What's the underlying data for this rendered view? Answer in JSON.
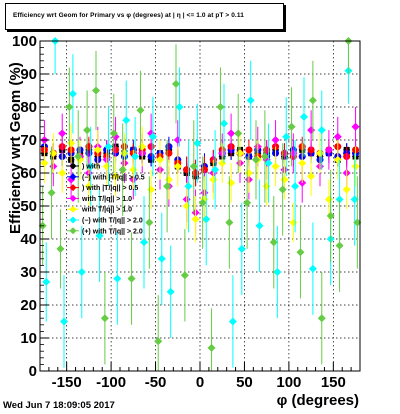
{
  "title": "Efficiency wrt Geom for Primary vs φ (degrees) at | η | <= 1.0 at pT > 0.11",
  "timestamp": "Wed Jun  7 18:09:05 2017",
  "colors": {
    "black": "#000000",
    "blue": "#0000ff",
    "red": "#ff0000",
    "magenta": "#ff00ff",
    "yellow": "#ffff00",
    "cyan": "#00ffff",
    "green": "#66cc44"
  },
  "chart_data": {
    "type": "scatter",
    "title": "Efficiency wrt Geom for Primary vs φ (degrees) at | η | <= 1.0 at pT > 0.11",
    "xlabel": "φ (degrees)",
    "ylabel": "Efficiency wrt Geom (%)",
    "xlim": [
      -180,
      180
    ],
    "ylim": [
      0,
      100
    ],
    "grid": true,
    "x_ticks": [
      -150,
      -100,
      -50,
      0,
      50,
      100,
      150
    ],
    "y_ticks": [
      0,
      10,
      20,
      30,
      40,
      50,
      60,
      70,
      80,
      90,
      100
    ],
    "legend": {
      "placement": "left",
      "entries": [
        {
          "label": "(+) with |ΔT/|q|| > 0.5",
          "color": "#000000",
          "visible_text": ") with"
        },
        {
          "label": "(−) with |ΔT/|q|| > 0.5",
          "color": "#0000ff",
          "visible_text": "(−) with |T/|q|| > 0.5"
        },
        {
          "label": "(+) with |ΔT/|q|| > 1.0",
          "color": "#ff0000",
          "visible_text": ") with |T/|q|| > 0.5"
        },
        {
          "label": "(−) with |ΔT/|q|| > 1.0",
          "color": "#ff00ff",
          "visible_text": "with T/|q|| > 1.0"
        },
        {
          "label": "(+) with |ΔT/|q|| > 2.0",
          "color": "#ffff00",
          "visible_text": "with T/|q|| > 1.0"
        },
        {
          "label": "(−) with |ΔT/|q|| > 2.0",
          "color": "#00ffff",
          "visible_text": "(−) with T/|q|| > 2.0"
        },
        {
          "label": "(+) with |ΔT/|q|| > 2.0",
          "color": "#66cc44",
          "visible_text": "(+) with T/|q|| > 2.0"
        }
      ]
    },
    "series": [
      {
        "color": "#000000",
        "marker": "square",
        "x": [
          -175,
          -165,
          -155,
          -145,
          -135,
          -125,
          -115,
          -105,
          -95,
          -85,
          -75,
          -65,
          -55,
          -45,
          -35,
          -25,
          -15,
          -5,
          5,
          15,
          25,
          35,
          45,
          55,
          65,
          75,
          85,
          95,
          105,
          115,
          125,
          135,
          145,
          155,
          165,
          175
        ],
        "y": [
          66,
          65,
          67,
          64,
          66,
          67,
          65,
          66,
          68,
          66,
          67,
          65,
          64,
          66,
          67,
          62,
          60,
          59,
          61,
          63,
          65,
          66,
          67,
          65,
          66,
          66,
          67,
          65,
          66,
          67,
          66,
          65,
          66,
          64,
          67,
          65
        ],
        "err": [
          2,
          2,
          2,
          2,
          2,
          2,
          2,
          2,
          2,
          2,
          2,
          2,
          2,
          2,
          2,
          2,
          3,
          3,
          3,
          2,
          2,
          2,
          2,
          2,
          2,
          2,
          2,
          2,
          2,
          2,
          2,
          2,
          2,
          2,
          2,
          2
        ]
      },
      {
        "color": "#0000ff",
        "marker": "circle",
        "x": [
          -175,
          -165,
          -155,
          -145,
          -135,
          -125,
          -115,
          -105,
          -95,
          -85,
          -75,
          -65,
          -55,
          -45,
          -35,
          -25,
          -15,
          -5,
          5,
          15,
          25,
          35,
          45,
          55,
          65,
          75,
          85,
          95,
          105,
          115,
          125,
          135,
          145,
          155,
          165,
          175
        ],
        "y": [
          68,
          66,
          65,
          66,
          67,
          66,
          64,
          67,
          66,
          65,
          67,
          66,
          65,
          66,
          68,
          64,
          61,
          60,
          62,
          64,
          66,
          67,
          66,
          65,
          67,
          65,
          66,
          66,
          67,
          65,
          66,
          64,
          66,
          65,
          66,
          66
        ],
        "err": [
          3,
          3,
          3,
          3,
          3,
          3,
          3,
          3,
          3,
          3,
          3,
          3,
          3,
          3,
          3,
          3,
          4,
          4,
          4,
          3,
          3,
          3,
          3,
          3,
          3,
          3,
          3,
          3,
          3,
          3,
          3,
          3,
          3,
          3,
          3,
          3
        ]
      },
      {
        "color": "#ff0000",
        "marker": "circle",
        "x": [
          -175,
          -165,
          -155,
          -145,
          -135,
          -125,
          -115,
          -105,
          -95,
          -85,
          -75,
          -65,
          -55,
          -45,
          -35,
          -25,
          -15,
          -5,
          5,
          15,
          25,
          35,
          45,
          55,
          65,
          75,
          85,
          95,
          105,
          115,
          125,
          135,
          145,
          155,
          165,
          175
        ],
        "y": [
          67,
          66,
          68,
          67,
          65,
          68,
          66,
          65,
          67,
          68,
          66,
          67,
          68,
          65,
          66,
          63,
          61,
          60,
          61,
          64,
          67,
          68,
          66,
          67,
          65,
          67,
          68,
          66,
          65,
          68,
          67,
          66,
          67,
          68,
          65,
          67
        ],
        "err": [
          3,
          3,
          3,
          3,
          3,
          3,
          3,
          3,
          3,
          3,
          3,
          3,
          3,
          3,
          3,
          3,
          4,
          4,
          4,
          3,
          3,
          3,
          3,
          3,
          3,
          3,
          3,
          3,
          3,
          3,
          3,
          3,
          3,
          3,
          3,
          3
        ]
      },
      {
        "color": "#ff00ff",
        "marker": "diamond",
        "x": [
          -175,
          -165,
          -155,
          -145,
          -135,
          -125,
          -115,
          -105,
          -95,
          -85,
          -75,
          -65,
          -55,
          -45,
          -35,
          -25,
          -15,
          -5,
          5,
          15,
          25,
          35,
          45,
          55,
          65,
          75,
          85,
          95,
          105,
          115,
          125,
          135,
          145,
          155,
          165,
          175
        ],
        "y": [
          70,
          62,
          72,
          58,
          65,
          60,
          68,
          64,
          71,
          63,
          58,
          66,
          72,
          61,
          56,
          70,
          52,
          48,
          54,
          60,
          66,
          72,
          63,
          58,
          68,
          64,
          70,
          61,
          66,
          57,
          73,
          62,
          67,
          71,
          60,
          74
        ],
        "err": [
          6,
          6,
          6,
          6,
          6,
          6,
          6,
          6,
          6,
          6,
          6,
          6,
          6,
          6,
          6,
          6,
          7,
          7,
          7,
          6,
          6,
          6,
          6,
          6,
          6,
          6,
          6,
          6,
          6,
          6,
          6,
          6,
          6,
          6,
          6,
          6
        ]
      },
      {
        "color": "#ffff00",
        "marker": "diamond",
        "x": [
          -175,
          -165,
          -155,
          -145,
          -135,
          -125,
          -115,
          -105,
          -95,
          -85,
          -75,
          -65,
          -55,
          -45,
          -35,
          -25,
          -15,
          -5,
          5,
          15,
          25,
          35,
          45,
          55,
          65,
          75,
          85,
          95,
          105,
          115,
          125,
          135,
          145,
          155,
          165,
          175
        ],
        "y": [
          63,
          66,
          60,
          69,
          64,
          56,
          67,
          62,
          59,
          66,
          61,
          68,
          55,
          64,
          58,
          62,
          50,
          46,
          52,
          58,
          63,
          57,
          66,
          60,
          64,
          56,
          62,
          58,
          45,
          63,
          59,
          66,
          52,
          64,
          55,
          62
        ],
        "err": [
          6,
          6,
          6,
          6,
          6,
          6,
          6,
          6,
          6,
          6,
          6,
          6,
          6,
          6,
          6,
          6,
          7,
          7,
          7,
          6,
          6,
          6,
          6,
          6,
          6,
          6,
          6,
          6,
          6,
          6,
          6,
          6,
          6,
          6,
          6,
          6
        ]
      },
      {
        "color": "#00ffff",
        "marker": "diamond",
        "x": [
          -173,
          -163,
          -153,
          -143,
          -133,
          -123,
          -113,
          -103,
          -93,
          -83,
          -73,
          -63,
          -53,
          -43,
          -33,
          -23,
          -13,
          -3,
          7,
          17,
          27,
          37,
          47,
          57,
          67,
          77,
          87,
          97,
          107,
          117,
          127,
          137,
          147,
          157,
          167,
          174
        ],
        "y": [
          27,
          100,
          15,
          84,
          30,
          62,
          41,
          68,
          28,
          76,
          65,
          39,
          71,
          34,
          24,
          80,
          56,
          69,
          46,
          61,
          75,
          15,
          37,
          82,
          44,
          63,
          30,
          71,
          56,
          77,
          31,
          73,
          40,
          52,
          91,
          52
        ],
        "err": [
          12,
          10,
          14,
          12,
          14,
          12,
          14,
          12,
          14,
          12,
          12,
          14,
          12,
          14,
          14,
          12,
          14,
          12,
          14,
          12,
          12,
          14,
          14,
          12,
          14,
          12,
          14,
          12,
          14,
          12,
          14,
          12,
          14,
          12,
          10,
          14
        ]
      },
      {
        "color": "#66cc44",
        "marker": "diamond",
        "x": [
          -177,
          -167,
          -157,
          -147,
          -137,
          -127,
          -117,
          -107,
          -97,
          -87,
          -77,
          -67,
          -57,
          -47,
          -37,
          -27,
          -17,
          -7,
          3,
          13,
          23,
          33,
          43,
          53,
          63,
          73,
          83,
          93,
          103,
          113,
          127,
          137,
          147,
          157,
          167,
          177
        ],
        "y": [
          44,
          54,
          37,
          80,
          65,
          73,
          85,
          16,
          72,
          61,
          28,
          79,
          45,
          9,
          56,
          87,
          29,
          62,
          51,
          7,
          80,
          45,
          72,
          51,
          64,
          65,
          39,
          55,
          74,
          36,
          82,
          16,
          47,
          38,
          100,
          45
        ],
        "err": [
          12,
          14,
          12,
          12,
          14,
          12,
          12,
          14,
          12,
          14,
          14,
          12,
          14,
          14,
          14,
          12,
          14,
          14,
          14,
          12,
          12,
          14,
          12,
          14,
          12,
          14,
          14,
          14,
          12,
          14,
          12,
          14,
          14,
          14,
          10,
          14
        ]
      }
    ]
  }
}
